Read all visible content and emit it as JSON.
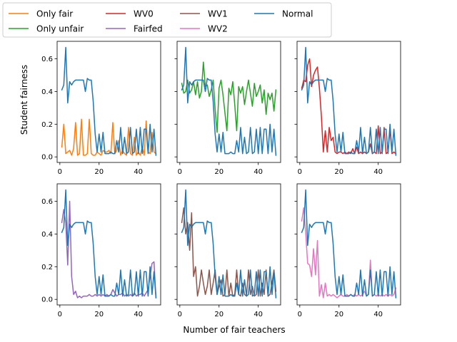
{
  "figure": {
    "xlabel": "Number of fair teachers",
    "ylabel": "Student fairness"
  },
  "legend": {
    "placement": "top-left",
    "entries": [
      {
        "name": "Only fair",
        "color": "#ff7f0e"
      },
      {
        "name": "Only unfair",
        "color": "#2ca02c"
      },
      {
        "name": "WV0",
        "color": "#d62728"
      },
      {
        "name": "Fairfed",
        "color": "#9467bd"
      },
      {
        "name": "WV1",
        "color": "#8c564b"
      },
      {
        "name": "WV2",
        "color": "#e377c2"
      },
      {
        "name": "Normal",
        "color": "#1f77b4"
      }
    ]
  },
  "chart_data": {
    "type": "line",
    "layout": "2x3 grid, shared x and y axes",
    "xlim": [
      -1.4,
      51.4
    ],
    "ylim": [
      -0.034,
      0.707
    ],
    "xticks": [
      0,
      20,
      40
    ],
    "yticks": [
      0.0,
      0.2,
      0.4,
      0.6
    ],
    "normal": {
      "name": "Normal",
      "color": "#1f77b4",
      "x": [
        1,
        2,
        3,
        4,
        5,
        6,
        7,
        8,
        9,
        10,
        11,
        12,
        13,
        14,
        15,
        16,
        17,
        18,
        19,
        20,
        21,
        22,
        23,
        24,
        25,
        26,
        27,
        28,
        29,
        30,
        31,
        32,
        33,
        34,
        35,
        36,
        37,
        38,
        39,
        40,
        41,
        42,
        43,
        44,
        45,
        46,
        47,
        48,
        49
      ],
      "y": [
        0.41,
        0.44,
        0.67,
        0.33,
        0.46,
        0.44,
        0.46,
        0.47,
        0.47,
        0.47,
        0.47,
        0.47,
        0.4,
        0.48,
        0.47,
        0.47,
        0.34,
        0.14,
        0.03,
        0.14,
        0.03,
        0.15,
        0.02,
        0.02,
        0.02,
        0.03,
        0.02,
        0.02,
        0.1,
        0.03,
        0.18,
        0.02,
        0.12,
        0.02,
        0.03,
        0.18,
        0.02,
        0.03,
        0.17,
        0.02,
        0.18,
        0.02,
        0.17,
        0.17,
        0.02,
        0.2,
        0.03,
        0.17,
        0.01
      ]
    },
    "panels": [
      {
        "row": 1,
        "col": 1,
        "series": [
          {
            "name": "Only fair",
            "color": "#ff7f0e",
            "x": [
              1,
              2,
              3,
              4,
              5,
              6,
              7,
              8,
              9,
              10,
              11,
              12,
              13,
              14,
              15,
              16,
              17,
              18,
              19,
              20,
              21,
              22,
              23,
              24,
              25,
              26,
              27,
              28,
              29,
              30,
              31,
              32,
              33,
              34,
              35,
              36,
              37,
              38,
              39,
              40,
              41,
              42,
              43,
              44,
              45,
              46,
              47,
              48,
              49
            ],
            "y": [
              0.06,
              0.2,
              0.02,
              0.03,
              0.04,
              0.01,
              0.05,
              0.21,
              0.01,
              0.02,
              0.23,
              0.01,
              0.01,
              0.02,
              0.23,
              0.02,
              0.01,
              0.01,
              0.03,
              0.02,
              0.01,
              0.04,
              0.03,
              0.03,
              0.04,
              0.02,
              0.21,
              0.02,
              0.04,
              0.1,
              0.01,
              0.04,
              0.02,
              0.01,
              0.18,
              0.02,
              0.01,
              0.12,
              0.01,
              0.03,
              0.01,
              0.06,
              0.01,
              0.22,
              0.03,
              0.02,
              0.15,
              0.03,
              0.02
            ]
          }
        ]
      },
      {
        "row": 1,
        "col": 2,
        "series": [
          {
            "name": "Only unfair",
            "color": "#2ca02c",
            "x": [
              1,
              2,
              3,
              4,
              5,
              6,
              7,
              8,
              9,
              10,
              11,
              12,
              13,
              14,
              15,
              16,
              17,
              18,
              19,
              20,
              21,
              22,
              23,
              24,
              25,
              26,
              27,
              28,
              29,
              30,
              31,
              32,
              33,
              34,
              35,
              36,
              37,
              38,
              39,
              40,
              41,
              42,
              43,
              44,
              45,
              46,
              47,
              48,
              49
            ],
            "y": [
              0.45,
              0.39,
              0.4,
              0.47,
              0.39,
              0.41,
              0.46,
              0.38,
              0.46,
              0.36,
              0.4,
              0.58,
              0.43,
              0.44,
              0.37,
              0.41,
              0.47,
              0.29,
              0.15,
              0.42,
              0.47,
              0.38,
              0.27,
              0.16,
              0.42,
              0.38,
              0.46,
              0.32,
              0.16,
              0.43,
              0.39,
              0.43,
              0.32,
              0.4,
              0.47,
              0.39,
              0.31,
              0.45,
              0.37,
              0.4,
              0.44,
              0.33,
              0.41,
              0.26,
              0.39,
              0.35,
              0.39,
              0.28,
              0.41
            ]
          }
        ]
      },
      {
        "row": 1,
        "col": 3,
        "series": [
          {
            "name": "WV0",
            "color": "#d62728",
            "x": [
              1,
              2,
              3,
              4,
              5,
              6,
              7,
              8,
              9,
              10,
              11,
              12,
              13,
              14,
              15,
              16,
              17,
              18,
              19,
              20,
              21,
              22,
              23,
              24,
              25,
              26,
              27,
              28,
              29,
              30,
              31,
              32,
              33,
              34,
              35,
              36,
              37,
              38,
              39,
              40,
              41,
              42,
              43,
              44,
              45,
              46,
              47,
              48,
              49
            ],
            "y": [
              0.42,
              0.47,
              0.46,
              0.56,
              0.6,
              0.43,
              0.5,
              0.53,
              0.55,
              0.42,
              0.25,
              0.03,
              0.16,
              0.03,
              0.18,
              0.1,
              0.12,
              0.03,
              0.02,
              0.03,
              0.03,
              0.02,
              0.03,
              0.02,
              0.03,
              0.02,
              0.05,
              0.02,
              0.06,
              0.02,
              0.03,
              0.02,
              0.03,
              0.02,
              0.03,
              0.08,
              0.02,
              0.03,
              0.02,
              0.19,
              0.02,
              0.03,
              0.18,
              0.02,
              0.03,
              0.17,
              0.02,
              0.03,
              0.02
            ]
          }
        ]
      },
      {
        "row": 2,
        "col": 1,
        "series": [
          {
            "name": "Fairfed",
            "color": "#9467bd",
            "x": [
              1,
              2,
              3,
              4,
              5,
              6,
              7,
              8,
              9,
              10,
              11,
              12,
              13,
              14,
              15,
              16,
              17,
              18,
              19,
              20,
              21,
              22,
              23,
              24,
              25,
              26,
              27,
              28,
              29,
              30,
              31,
              32,
              33,
              34,
              35,
              36,
              37,
              38,
              39,
              40,
              41,
              42,
              43,
              44,
              45,
              46,
              47,
              48,
              49
            ],
            "y": [
              0.47,
              0.55,
              0.47,
              0.21,
              0.6,
              0.14,
              0.03,
              0.05,
              0.01,
              0.02,
              0.01,
              0.02,
              0.02,
              0.02,
              0.03,
              0.02,
              0.02,
              0.03,
              0.02,
              0.03,
              0.02,
              0.03,
              0.02,
              0.03,
              0.02,
              0.03,
              0.06,
              0.04,
              0.02,
              0.03,
              0.03,
              0.04,
              0.02,
              0.03,
              0.02,
              0.03,
              0.02,
              0.04,
              0.02,
              0.03,
              0.03,
              0.04,
              0.02,
              0.04,
              0.06,
              0.14,
              0.22,
              0.23,
              0.01
            ]
          }
        ]
      },
      {
        "row": 2,
        "col": 2,
        "series": [
          {
            "name": "WV1",
            "color": "#8c564b",
            "x": [
              1,
              2,
              3,
              4,
              5,
              6,
              7,
              8,
              9,
              10,
              11,
              12,
              13,
              14,
              15,
              16,
              17,
              18,
              19,
              20,
              21,
              22,
              23,
              24,
              25,
              26,
              27,
              28,
              29,
              30,
              31,
              32,
              33,
              34,
              35,
              36,
              37,
              38,
              39,
              40,
              41,
              42,
              43,
              44,
              45,
              46,
              47,
              48,
              49
            ],
            "y": [
              0.47,
              0.56,
              0.4,
              0.47,
              0.3,
              0.53,
              0.14,
              0.2,
              0.02,
              0.08,
              0.18,
              0.1,
              0.03,
              0.08,
              0.18,
              0.03,
              0.1,
              0.18,
              0.03,
              0.08,
              0.12,
              0.02,
              0.03,
              0.18,
              0.02,
              0.1,
              0.02,
              0.03,
              0.18,
              0.03,
              0.02,
              0.1,
              0.03,
              0.02,
              0.18,
              0.03,
              0.08,
              0.02,
              0.03,
              0.18,
              0.02,
              0.1,
              0.03,
              0.18,
              0.02,
              0.03,
              0.1,
              0.18,
              0.05
            ]
          }
        ]
      },
      {
        "row": 2,
        "col": 3,
        "series": [
          {
            "name": "WV2",
            "color": "#e377c2",
            "x": [
              1,
              2,
              3,
              4,
              5,
              6,
              7,
              8,
              9,
              10,
              11,
              12,
              13,
              14,
              15,
              16,
              17,
              18,
              19,
              20,
              21,
              22,
              23,
              24,
              25,
              26,
              27,
              28,
              29,
              30,
              31,
              32,
              33,
              34,
              35,
              36,
              37,
              38,
              39,
              40,
              41,
              42,
              43,
              44,
              45,
              46,
              47,
              48,
              49
            ],
            "y": [
              0.48,
              0.56,
              0.41,
              0.22,
              0.21,
              0.14,
              0.31,
              0.15,
              0.36,
              0.02,
              0.09,
              0.01,
              0.1,
              0.02,
              0.03,
              0.02,
              0.03,
              0.02,
              0.01,
              0.02,
              0.03,
              0.02,
              0.02,
              0.03,
              0.02,
              0.03,
              0.02,
              0.03,
              0.02,
              0.03,
              0.02,
              0.03,
              0.05,
              0.02,
              0.03,
              0.24,
              0.02,
              0.03,
              0.02,
              0.03,
              0.02,
              0.03,
              0.02,
              0.03,
              0.02,
              0.03,
              0.02,
              0.03,
              0.07
            ]
          }
        ]
      }
    ]
  }
}
